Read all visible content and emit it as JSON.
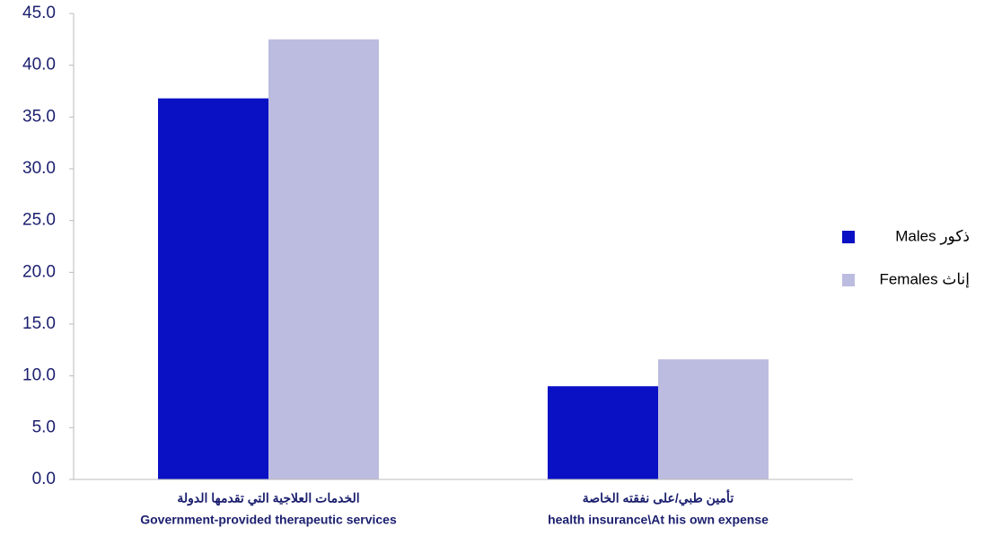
{
  "chart_data": {
    "type": "bar",
    "categories": [
      [
        "الخدمات العلاجية التي تقدمها الدولة",
        "Government-provided therapeutic services"
      ],
      [
        "تأمين طبي/على نفقته الخاصة",
        "health insurance\\At his own expense"
      ]
    ],
    "series": [
      {
        "name": "ذكور Males",
        "color": "#0a10c4",
        "values": [
          36.8,
          9.0
        ]
      },
      {
        "name": "إناث  Females",
        "color": "#bcbce0",
        "values": [
          42.5,
          11.6
        ]
      }
    ],
    "ylim": [
      0,
      45
    ],
    "yticks": [
      {
        "value": 0,
        "label": "0.0"
      },
      {
        "value": 5,
        "label": "5.0"
      },
      {
        "value": 10,
        "label": "10.0"
      },
      {
        "value": 15,
        "label": "15.0"
      },
      {
        "value": 20,
        "label": "20.0"
      },
      {
        "value": 25,
        "label": "25.0"
      },
      {
        "value": 30,
        "label": "30.0"
      },
      {
        "value": 35,
        "label": "35.0"
      },
      {
        "value": 40,
        "label": "40.0"
      },
      {
        "value": 45,
        "label": "45.0"
      }
    ],
    "legend": "right"
  }
}
